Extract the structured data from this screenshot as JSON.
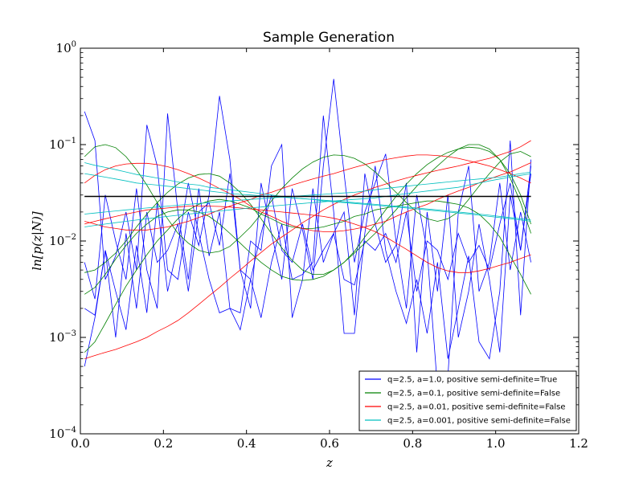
{
  "chart_data": {
    "type": "line",
    "title": "Sample Generation",
    "xlabel": "z",
    "ylabel": "ln[p(z|N)]",
    "xlim": [
      0.0,
      1.2
    ],
    "ylim": [
      0.0001,
      1.0
    ],
    "yscale": "log",
    "grid": false,
    "legend_position": "lower-right",
    "x_ticks": [
      0.0,
      0.2,
      0.4,
      0.6,
      0.8,
      1.0,
      1.2
    ],
    "x_tick_labels": [
      "0.0",
      "0.2",
      "0.4",
      "0.6",
      "0.8",
      "1.0",
      "1.2"
    ],
    "y_ticks": [
      1.0,
      0.1,
      0.01,
      0.001,
      0.0001
    ],
    "y_tick_labels": [
      {
        "base": "10",
        "exp": "0"
      },
      {
        "base": "10",
        "exp": "−1"
      },
      {
        "base": "10",
        "exp": "−2"
      },
      {
        "base": "10",
        "exp": "−3"
      },
      {
        "base": "10",
        "exp": "−4"
      }
    ],
    "x": [
      0.01,
      0.035,
      0.06,
      0.085,
      0.11,
      0.135,
      0.16,
      0.185,
      0.21,
      0.235,
      0.26,
      0.285,
      0.31,
      0.335,
      0.36,
      0.385,
      0.41,
      0.435,
      0.46,
      0.485,
      0.51,
      0.535,
      0.56,
      0.585,
      0.61,
      0.635,
      0.66,
      0.685,
      0.71,
      0.735,
      0.76,
      0.785,
      0.81,
      0.835,
      0.86,
      0.885,
      0.91,
      0.935,
      0.96,
      0.985,
      1.01,
      1.035,
      1.06,
      1.085
    ],
    "reference_line": {
      "y": 0.029,
      "color": "#000000"
    },
    "series": [
      {
        "name": "q=2.5, a=1.0, positive semi-definite=True",
        "color": "#0000ff",
        "lines": [
          [
            0.22,
            0.11,
            0.004,
            0.007,
            0.02,
            0.005,
            0.16,
            0.06,
            0.005,
            0.004,
            0.02,
            0.009,
            0.03,
            0.32,
            0.07,
            0.005,
            0.002,
            0.04,
            0.012,
            0.004,
            0.035,
            0.013,
            0.004,
            0.06,
            0.48,
            0.05,
            0.006,
            0.02,
            0.04,
            0.08,
            0.01,
            0.002,
            0.03,
            0.008,
            0.0003,
            0.0004,
            0.02,
            0.06,
            0.003,
            0.006,
            0.04,
            0.005,
            0.02,
            0.006
          ],
          [
            0.006,
            0.0025,
            0.03,
            0.01,
            0.004,
            0.035,
            0.005,
            0.002,
            0.21,
            0.02,
            0.004,
            0.035,
            0.007,
            0.02,
            0.002,
            0.0018,
            0.01,
            0.008,
            0.06,
            0.1,
            0.0016,
            0.004,
            0.035,
            0.006,
            0.012,
            0.02,
            0.0017,
            0.05,
            0.015,
            0.006,
            0.009,
            0.04,
            0.0007,
            0.02,
            0.003,
            0.03,
            0.001,
            0.003,
            0.015,
            0.004,
            0.0007,
            0.03,
            0.008,
            0.06
          ],
          [
            0.002,
            0.0017,
            0.008,
            0.003,
            0.0012,
            0.009,
            0.0018,
            0.025,
            0.003,
            0.009,
            0.04,
            0.012,
            0.004,
            0.0018,
            0.002,
            0.0012,
            0.004,
            0.0016,
            0.006,
            0.015,
            0.004,
            0.0045,
            0.006,
            0.2,
            0.02,
            0.0011,
            0.0011,
            0.012,
            0.06,
            0.008,
            0.003,
            0.0014,
            0.004,
            0.0011,
            0.006,
            0.0006,
            0.002,
            0.007,
            0.0009,
            0.0006,
            0.003,
            0.11,
            0.0017,
            0.07
          ],
          [
            0.0005,
            0.0016,
            0.008,
            0.001,
            0.012,
            0.002,
            0.02,
            0.006,
            0.008,
            0.015,
            0.003,
            0.02,
            0.025,
            0.009,
            0.05,
            0.005,
            0.004,
            0.012,
            0.03,
            0.008,
            0.006,
            0.015,
            0.005,
            0.008,
            0.012,
            0.004,
            0.0035,
            0.01,
            0.008,
            0.012,
            0.006,
            0.02,
            0.003,
            0.01,
            0.008,
            0.004,
            0.012,
            0.006,
            0.009,
            0.005,
            0.015,
            0.04,
            0.008,
            0.05
          ]
        ]
      },
      {
        "name": "q=2.5, a=0.1, positive semi-definite=False",
        "color": "#008000",
        "lines": [
          [
            0.075,
            0.095,
            0.1,
            0.093,
            0.075,
            0.055,
            0.038,
            0.025,
            0.017,
            0.012,
            0.0095,
            0.008,
            0.0075,
            0.0078,
            0.0088,
            0.011,
            0.014,
            0.019,
            0.026,
            0.035,
            0.045,
            0.056,
            0.066,
            0.074,
            0.078,
            0.077,
            0.072,
            0.063,
            0.052,
            0.041,
            0.032,
            0.025,
            0.02,
            0.017,
            0.016,
            0.017,
            0.02,
            0.027,
            0.037,
            0.05,
            0.066,
            0.08,
            0.085,
            0.075
          ],
          [
            0.0047,
            0.005,
            0.006,
            0.0075,
            0.01,
            0.014,
            0.019,
            0.025,
            0.032,
            0.039,
            0.045,
            0.049,
            0.05,
            0.047,
            0.04,
            0.032,
            0.024,
            0.017,
            0.012,
            0.0085,
            0.0063,
            0.005,
            0.0045,
            0.0045,
            0.005,
            0.006,
            0.0078,
            0.011,
            0.015,
            0.021,
            0.029,
            0.039,
            0.05,
            0.062,
            0.073,
            0.083,
            0.09,
            0.094,
            0.092,
            0.085,
            0.07,
            0.05,
            0.03,
            0.015
          ],
          [
            0.0028,
            0.0033,
            0.0045,
            0.0065,
            0.009,
            0.012,
            0.015,
            0.018,
            0.02,
            0.021,
            0.021,
            0.02,
            0.018,
            0.015,
            0.012,
            0.0095,
            0.0075,
            0.006,
            0.005,
            0.0043,
            0.004,
            0.0039,
            0.004,
            0.0043,
            0.005,
            0.006,
            0.0075,
            0.0095,
            0.012,
            0.016,
            0.021,
            0.028,
            0.037,
            0.048,
            0.06,
            0.075,
            0.09,
            0.1,
            0.1,
            0.09,
            0.07,
            0.045,
            0.025,
            0.012
          ],
          [
            0.0007,
            0.0009,
            0.0014,
            0.0022,
            0.0034,
            0.005,
            0.0072,
            0.01,
            0.013,
            0.017,
            0.021,
            0.024,
            0.026,
            0.027,
            0.026,
            0.024,
            0.022,
            0.019,
            0.017,
            0.015,
            0.014,
            0.0135,
            0.0135,
            0.014,
            0.015,
            0.016,
            0.018,
            0.019,
            0.021,
            0.022,
            0.023,
            0.024,
            0.025,
            0.026,
            0.026,
            0.025,
            0.024,
            0.022,
            0.019,
            0.015,
            0.011,
            0.007,
            0.0045,
            0.0028
          ]
        ]
      },
      {
        "name": "q=2.5, a=0.01, positive semi-definite=False",
        "color": "#ff0000",
        "lines": [
          [
            0.0006,
            0.00065,
            0.0007,
            0.00075,
            0.00082,
            0.0009,
            0.001,
            0.00115,
            0.0013,
            0.0015,
            0.0018,
            0.0022,
            0.0027,
            0.0033,
            0.0041,
            0.005,
            0.0062,
            0.0076,
            0.0093,
            0.011,
            0.013,
            0.0155,
            0.018,
            0.021,
            0.024,
            0.027,
            0.03,
            0.033,
            0.036,
            0.039,
            0.042,
            0.045,
            0.048,
            0.051,
            0.054,
            0.057,
            0.06,
            0.064,
            0.068,
            0.072,
            0.078,
            0.085,
            0.095,
            0.11
          ],
          [
            0.04,
            0.048,
            0.055,
            0.06,
            0.063,
            0.064,
            0.064,
            0.062,
            0.059,
            0.055,
            0.05,
            0.045,
            0.04,
            0.035,
            0.031,
            0.027,
            0.023,
            0.02,
            0.018,
            0.016,
            0.0145,
            0.0135,
            0.0128,
            0.0125,
            0.0125,
            0.0128,
            0.0133,
            0.014,
            0.015,
            0.016,
            0.018,
            0.02,
            0.022,
            0.024,
            0.027,
            0.03,
            0.033,
            0.036,
            0.04,
            0.044,
            0.048,
            0.052,
            0.058,
            0.065
          ],
          [
            0.016,
            0.015,
            0.014,
            0.0135,
            0.013,
            0.013,
            0.013,
            0.0135,
            0.014,
            0.015,
            0.016,
            0.0175,
            0.019,
            0.021,
            0.023,
            0.025,
            0.027,
            0.03,
            0.032,
            0.035,
            0.038,
            0.041,
            0.044,
            0.047,
            0.05,
            0.054,
            0.058,
            0.062,
            0.066,
            0.07,
            0.073,
            0.076,
            0.078,
            0.078,
            0.077,
            0.075,
            0.072,
            0.068,
            0.064,
            0.06,
            0.055,
            0.05,
            0.045,
            0.04
          ],
          [
            0.015,
            0.016,
            0.017,
            0.018,
            0.019,
            0.02,
            0.021,
            0.0215,
            0.022,
            0.0225,
            0.023,
            0.023,
            0.023,
            0.0228,
            0.0225,
            0.022,
            0.0215,
            0.021,
            0.0205,
            0.02,
            0.0195,
            0.019,
            0.0185,
            0.018,
            0.0172,
            0.0162,
            0.015,
            0.0138,
            0.0125,
            0.011,
            0.0095,
            0.0082,
            0.007,
            0.006,
            0.0053,
            0.0049,
            0.0047,
            0.0047,
            0.0049,
            0.0052,
            0.0056,
            0.006,
            0.0066,
            0.0072
          ]
        ]
      },
      {
        "name": "q=2.5, a=0.001, positive semi-definite=False",
        "color": "#00bfbf",
        "lines": [
          [
            0.065,
            0.061,
            0.058,
            0.055,
            0.052,
            0.049,
            0.047,
            0.045,
            0.043,
            0.041,
            0.039,
            0.038,
            0.036,
            0.035,
            0.034,
            0.033,
            0.032,
            0.031,
            0.03,
            0.029,
            0.028,
            0.0275,
            0.027,
            0.026,
            0.0255,
            0.025,
            0.0245,
            0.024,
            0.0235,
            0.023,
            0.0225,
            0.022,
            0.0215,
            0.021,
            0.0205,
            0.02,
            0.0195,
            0.019,
            0.0185,
            0.018,
            0.0175,
            0.017,
            0.0165,
            0.016
          ],
          [
            0.05,
            0.048,
            0.046,
            0.044,
            0.042,
            0.04,
            0.039,
            0.038,
            0.037,
            0.036,
            0.035,
            0.034,
            0.033,
            0.032,
            0.031,
            0.0305,
            0.03,
            0.0295,
            0.029,
            0.0285,
            0.028,
            0.0275,
            0.027,
            0.0265,
            0.026,
            0.0255,
            0.025,
            0.0245,
            0.024,
            0.0235,
            0.023,
            0.0225,
            0.022,
            0.0215,
            0.021,
            0.0205,
            0.02,
            0.0195,
            0.019,
            0.0185,
            0.018,
            0.0175,
            0.017,
            0.0165
          ],
          [
            0.019,
            0.0195,
            0.02,
            0.0205,
            0.021,
            0.0215,
            0.022,
            0.0225,
            0.023,
            0.0235,
            0.024,
            0.0245,
            0.025,
            0.0255,
            0.026,
            0.0265,
            0.027,
            0.0275,
            0.028,
            0.0285,
            0.029,
            0.0295,
            0.03,
            0.0305,
            0.031,
            0.0315,
            0.032,
            0.033,
            0.034,
            0.035,
            0.036,
            0.037,
            0.038,
            0.039,
            0.04,
            0.041,
            0.042,
            0.043,
            0.044,
            0.045,
            0.046,
            0.048,
            0.05,
            0.052
          ],
          [
            0.014,
            0.0145,
            0.015,
            0.0155,
            0.016,
            0.0165,
            0.017,
            0.0175,
            0.018,
            0.0185,
            0.019,
            0.0195,
            0.02,
            0.0205,
            0.021,
            0.0215,
            0.022,
            0.0225,
            0.023,
            0.0235,
            0.024,
            0.0245,
            0.025,
            0.0255,
            0.026,
            0.0265,
            0.027,
            0.0275,
            0.028,
            0.029,
            0.03,
            0.031,
            0.032,
            0.033,
            0.034,
            0.035,
            0.036,
            0.038,
            0.04,
            0.042,
            0.044,
            0.046,
            0.048,
            0.05
          ]
        ]
      }
    ]
  }
}
